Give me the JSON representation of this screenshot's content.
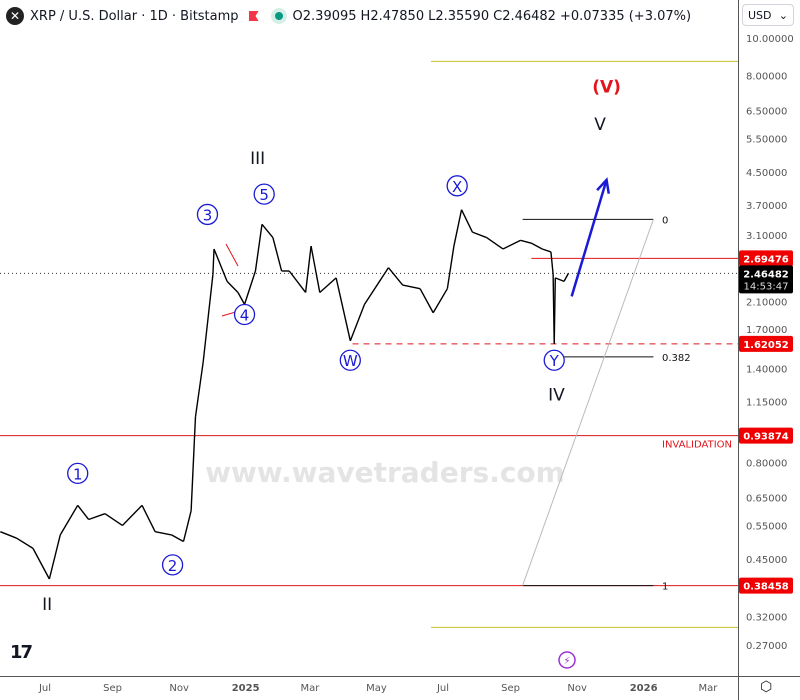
{
  "header": {
    "symbol": "XRP / U.S. Dollar · 1D · Bitstamp",
    "open_label": "O",
    "open": "2.39095",
    "high_label": "H",
    "high": "2.47850",
    "low_label": "L",
    "low": "2.35590",
    "close_label": "C",
    "close": "2.46482",
    "change": "+0.07335 (+3.07%)",
    "logo_glyph": "✕"
  },
  "currency": {
    "label": "USD",
    "chevron": "⌄"
  },
  "settings_glyph": "⬡",
  "tv_logo": "17",
  "watermark": "www.wavetraders.com",
  "colors": {
    "red": "#e0161c",
    "blue": "#1a1ad6",
    "yellow": "#c8c02a",
    "up": "#000000"
  },
  "chart_data": {
    "type": "line",
    "yscale": "log",
    "ylim": [
      0.26,
      11
    ],
    "xlim": [
      "2024-05-20",
      "2026-04-15"
    ],
    "y_ticks": [
      "10.00000",
      "8.00000",
      "6.50000",
      "5.50000",
      "4.50000",
      "3.70000",
      "3.10000",
      "2.10000",
      "1.70000",
      "1.40000",
      "1.15000",
      "0.80000",
      "0.65000",
      "0.55000",
      "0.45000",
      "0.32000",
      "0.27000"
    ],
    "x_ticks": [
      {
        "label": "Jul",
        "date": "2024-07-01"
      },
      {
        "label": "Sep",
        "date": "2024-09-01"
      },
      {
        "label": "Nov",
        "date": "2024-11-01"
      },
      {
        "label": "2025",
        "date": "2025-01-01"
      },
      {
        "label": "Mar",
        "date": "2025-03-01"
      },
      {
        "label": "May",
        "date": "2025-05-01"
      },
      {
        "label": "Jul",
        "date": "2025-07-01"
      },
      {
        "label": "Sep",
        "date": "2025-09-01"
      },
      {
        "label": "Nov",
        "date": "2025-11-01"
      },
      {
        "label": "2026",
        "date": "2026-01-01"
      },
      {
        "label": "Mar",
        "date": "2026-03-01"
      }
    ],
    "series": [
      {
        "points": [
          [
            "2024-05-21",
            0.53
          ],
          [
            "2024-06-05",
            0.51
          ],
          [
            "2024-06-20",
            0.48
          ],
          [
            "2024-07-05",
            0.4
          ],
          [
            "2024-07-15",
            0.52
          ],
          [
            "2024-07-31",
            0.62
          ],
          [
            "2024-08-10",
            0.57
          ],
          [
            "2024-08-25",
            0.59
          ],
          [
            "2024-09-10",
            0.55
          ],
          [
            "2024-09-28",
            0.62
          ],
          [
            "2024-10-10",
            0.53
          ],
          [
            "2024-10-25",
            0.52
          ],
          [
            "2024-11-05",
            0.5
          ],
          [
            "2024-11-12",
            0.6
          ],
          [
            "2024-11-16",
            1.05
          ],
          [
            "2024-11-23",
            1.45
          ],
          [
            "2024-12-02",
            2.45
          ],
          [
            "2024-12-03",
            2.85
          ],
          [
            "2024-12-15",
            2.35
          ],
          [
            "2024-12-25",
            2.2
          ],
          [
            "2024-12-31",
            2.05
          ],
          [
            "2025-01-10",
            2.5
          ],
          [
            "2025-01-16",
            3.3
          ],
          [
            "2025-01-26",
            3.05
          ],
          [
            "2025-02-03",
            2.5
          ],
          [
            "2025-02-10",
            2.5
          ],
          [
            "2025-02-25",
            2.2
          ],
          [
            "2025-03-02",
            2.9
          ],
          [
            "2025-03-10",
            2.2
          ],
          [
            "2025-03-25",
            2.4
          ],
          [
            "2025-04-07",
            1.65
          ],
          [
            "2025-04-20",
            2.05
          ],
          [
            "2025-05-12",
            2.55
          ],
          [
            "2025-05-25",
            2.3
          ],
          [
            "2025-06-10",
            2.25
          ],
          [
            "2025-06-22",
            1.95
          ],
          [
            "2025-07-05",
            2.25
          ],
          [
            "2025-07-11",
            2.9
          ],
          [
            "2025-07-18",
            3.6
          ],
          [
            "2025-07-28",
            3.15
          ],
          [
            "2025-08-10",
            3.05
          ],
          [
            "2025-08-25",
            2.85
          ],
          [
            "2025-09-10",
            3.0
          ],
          [
            "2025-09-20",
            2.95
          ],
          [
            "2025-09-30",
            2.85
          ],
          [
            "2025-10-08",
            2.8
          ],
          [
            "2025-10-10",
            2.45
          ],
          [
            "2025-10-11",
            1.62
          ],
          [
            "2025-10-12",
            2.4
          ],
          [
            "2025-10-20",
            2.35
          ],
          [
            "2025-10-24",
            2.46482
          ]
        ]
      }
    ],
    "price_labels": [
      {
        "value": 2.69476,
        "text": "2.69476",
        "color": "#f00000"
      },
      {
        "value": 2.46482,
        "text": "2.46482",
        "sub": "14:53:47",
        "color": "#000000"
      },
      {
        "value": 1.62052,
        "text": "1.62052",
        "color": "#f00000"
      },
      {
        "value": 0.93874,
        "text": "0.93874",
        "color": "#f00000"
      },
      {
        "value": 0.38458,
        "text": "0.38458",
        "color": "#f00000"
      }
    ],
    "levels": [
      {
        "value": 0.93874,
        "label": "INVALIDATION",
        "color": "#e0161c",
        "style": "solid",
        "from": "2024-05-20"
      },
      {
        "value": 0.38458,
        "label": "",
        "color": "#e0161c",
        "style": "solid",
        "from": "2024-05-20"
      },
      {
        "value": 2.69476,
        "label": "",
        "color": "#e0161c",
        "style": "solid",
        "from": "2025-09-20"
      },
      {
        "value": 1.62052,
        "label": "",
        "color": "#e0161c",
        "style": "dashed",
        "from": "2025-04-09"
      },
      {
        "value": 8.7,
        "label": "",
        "color": "#c8c02a",
        "style": "solid",
        "from": "2025-06-20"
      },
      {
        "value": 0.3,
        "label": "",
        "color": "#c8c02a",
        "style": "solid",
        "from": "2025-06-20"
      }
    ],
    "fib": [
      {
        "ratio": "0",
        "value": 3.4
      },
      {
        "ratio": "0.382",
        "value": 1.5
      },
      {
        "ratio": "1",
        "value": 0.3846
      }
    ],
    "waves": [
      {
        "text": "1",
        "circled": true,
        "date": "2024-07-31",
        "price": 0.75,
        "color": "#1a1ad6"
      },
      {
        "text": "2",
        "circled": true,
        "date": "2024-10-26",
        "price": 0.435,
        "color": "#1a1ad6"
      },
      {
        "text": "3",
        "circled": true,
        "date": "2024-11-27",
        "price": 3.5,
        "color": "#1a1ad6"
      },
      {
        "text": "4",
        "circled": true,
        "date": "2024-12-31",
        "price": 1.93,
        "color": "#1a1ad6"
      },
      {
        "text": "5",
        "circled": true,
        "date": "2025-01-18",
        "price": 3.95,
        "color": "#1a1ad6"
      },
      {
        "text": "W",
        "circled": true,
        "date": "2025-04-07",
        "price": 1.47,
        "color": "#1a1ad6"
      },
      {
        "text": "X",
        "circled": true,
        "date": "2025-07-14",
        "price": 4.15,
        "color": "#1a1ad6"
      },
      {
        "text": "Y",
        "circled": true,
        "date": "2025-10-11",
        "price": 1.47,
        "color": "#1a1ad6"
      },
      {
        "text": "II",
        "circled": false,
        "date": "2024-07-03",
        "price": 0.345,
        "color": "#131722"
      },
      {
        "text": "III",
        "circled": false,
        "date": "2025-01-12",
        "price": 4.9,
        "color": "#131722"
      },
      {
        "text": "IV",
        "circled": false,
        "date": "2025-10-13",
        "price": 1.2,
        "color": "#131722"
      },
      {
        "text": "V",
        "circled": false,
        "date": "2025-11-22",
        "price": 6.0,
        "color": "#131722"
      },
      {
        "text": "(V)",
        "circled": false,
        "date": "2025-11-28",
        "price": 7.5,
        "color": "#e0161c"
      }
    ],
    "arrow": {
      "from": [
        "2025-10-27",
        2.15
      ],
      "to": [
        "2025-11-28",
        4.3
      ],
      "color": "#1a1ad6"
    }
  }
}
